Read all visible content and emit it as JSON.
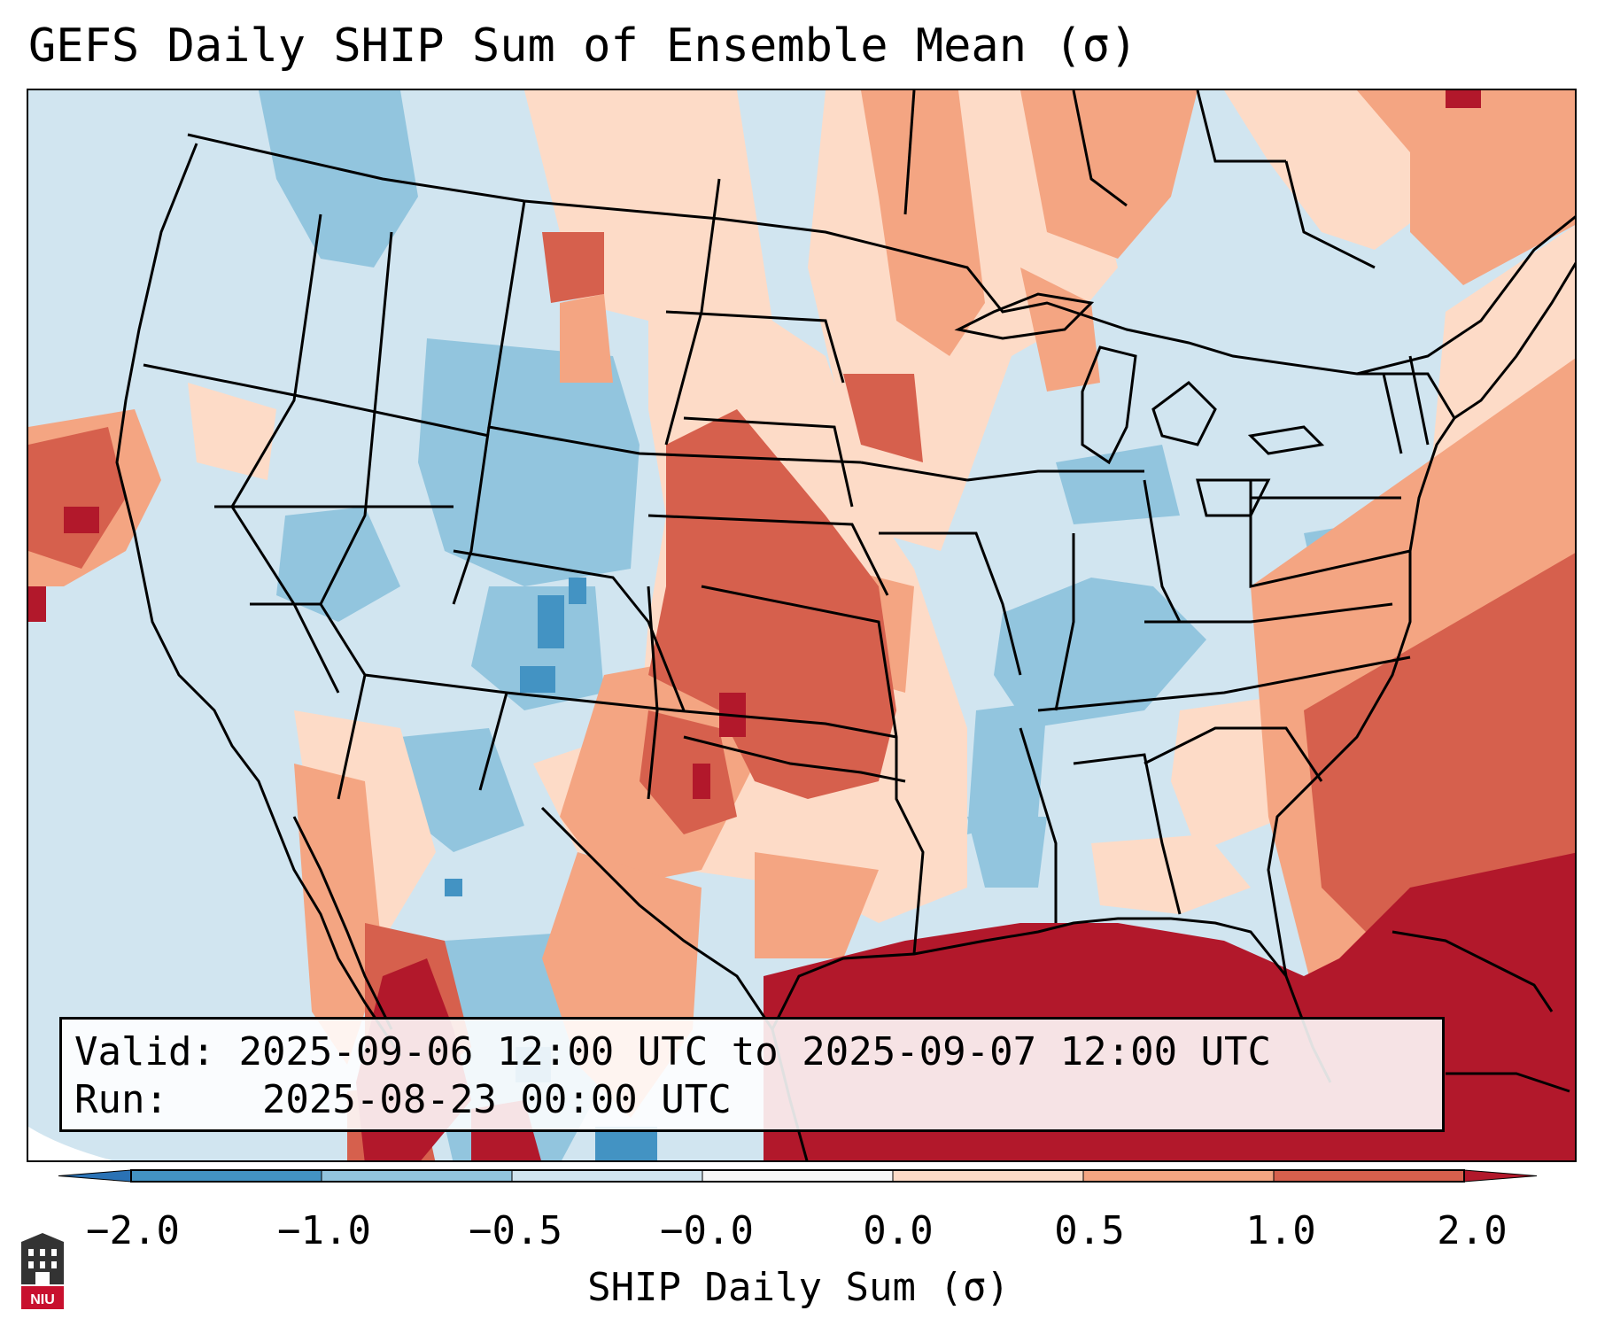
{
  "title": "GEFS Daily SHIP Sum of Ensemble Mean (σ)",
  "info": {
    "valid_label": "Valid:",
    "valid_value": "2025-09-06 12:00 UTC to 2025-09-07 12:00 UTC",
    "run_label": "Run:",
    "run_value": "2025-08-23 00:00 UTC"
  },
  "colorbar": {
    "label": "SHIP Daily Sum (σ)",
    "tick_labels": [
      "−2.0",
      "−1.0",
      "−0.5",
      "−0.0",
      "0.0",
      "0.5",
      "1.0",
      "2.0"
    ],
    "bins": [
      {
        "range": "< -2.0",
        "color": "#2a72b5"
      },
      {
        "range": "-2.0 to -1.0",
        "color": "#4393c3"
      },
      {
        "range": "-1.0 to -0.5",
        "color": "#92c5de"
      },
      {
        "range": "-0.5 to -0.0",
        "color": "#d1e5f0"
      },
      {
        "range": "-0.0 to 0.0",
        "color": "#f7f7f7"
      },
      {
        "range": "0.0 to 0.5",
        "color": "#fddbc7"
      },
      {
        "range": "0.5 to 1.0",
        "color": "#f4a582"
      },
      {
        "range": "1.0 to 2.0",
        "color": "#d6604d"
      },
      {
        "range": "> 2.0",
        "color": "#b2182b"
      }
    ]
  },
  "logo": {
    "text": "NIU"
  }
}
